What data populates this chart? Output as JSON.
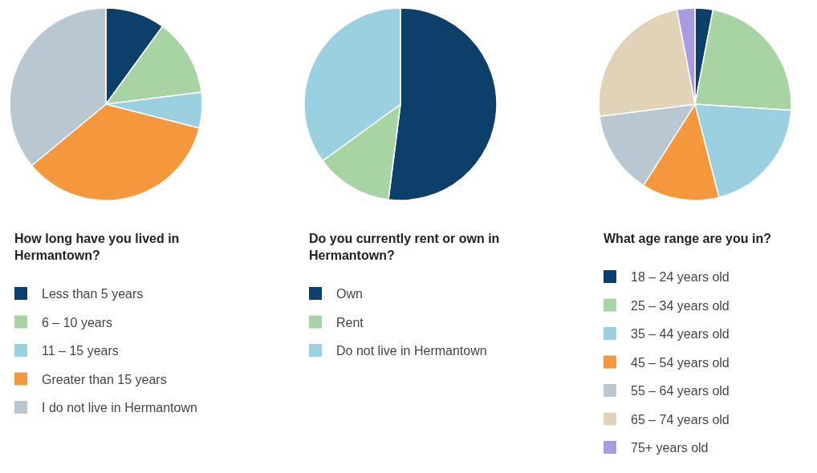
{
  "chart_data": [
    {
      "type": "pie",
      "title": "How long have you lived in Hermantown?",
      "categories": [
        "Less than 5 years",
        "6 – 10 years",
        "11 – 15 years",
        "Greater than 15 years",
        "I do not live in Hermantown"
      ],
      "values": [
        10,
        13,
        6,
        35,
        36
      ],
      "colors": [
        "#0d3f6b",
        "#a8d3a2",
        "#9bd0e0",
        "#f4973d",
        "#b9c7d3"
      ],
      "legend": "bottom"
    },
    {
      "type": "pie",
      "title": "Do you currently rent or own in Hermantown?",
      "categories": [
        "Own",
        "Rent",
        "Do not live in Hermantown"
      ],
      "values": [
        52,
        13,
        35
      ],
      "colors": [
        "#0d3f6b",
        "#a8d3a2",
        "#9bd0e0"
      ],
      "legend": "bottom"
    },
    {
      "type": "pie",
      "title": "What age range are you in?",
      "categories": [
        "18 – 24 years old",
        "25 – 34 years old",
        "35 – 44 years old",
        "45 – 54 years old",
        "55 – 64 years old",
        "65 – 74 years old",
        "75+ years old"
      ],
      "values": [
        3,
        23,
        20,
        13,
        14,
        24,
        3
      ],
      "colors": [
        "#0d3f6b",
        "#a8d3a2",
        "#9bd0e0",
        "#f4973d",
        "#b9c7d3",
        "#e0d3b8",
        "#a99be0"
      ],
      "legend": "bottom"
    }
  ]
}
